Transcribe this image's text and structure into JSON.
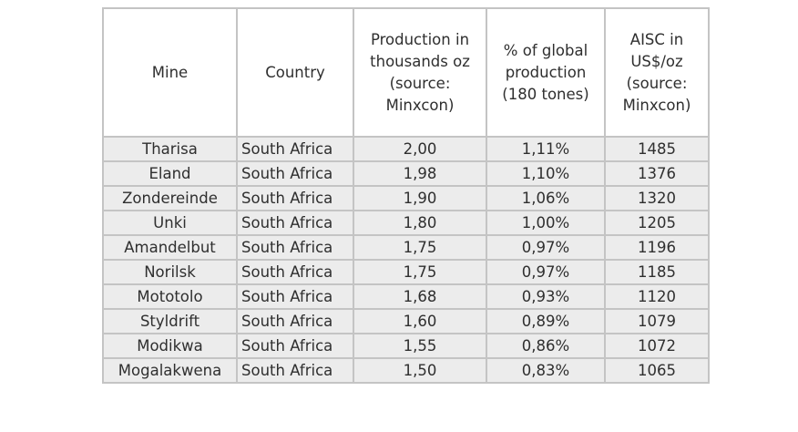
{
  "table": {
    "headers": [
      "Mine",
      "Country",
      "Production in thousands oz (source: Minxcon)",
      "% of global production (180 tones)",
      "AISC in US$/oz (source: Minxcon)"
    ],
    "header_lines": [
      [
        "Mine"
      ],
      [
        "Country"
      ],
      [
        "Production in",
        "thousands oz",
        "(source:",
        "Minxcon)"
      ],
      [
        "% of global",
        "production",
        "(180 tones)"
      ],
      [
        "AISC in",
        "US$/oz",
        "(source:",
        "Minxcon)"
      ]
    ],
    "rows": [
      [
        "Tharisa",
        "South Africa",
        "2,00",
        "1,11%",
        "1485"
      ],
      [
        "Eland",
        "South Africa",
        "1,98",
        "1,10%",
        "1376"
      ],
      [
        "Zondereinde",
        "South Africa",
        "1,90",
        "1,06%",
        "1320"
      ],
      [
        "Unki",
        "South Africa",
        "1,80",
        "1,00%",
        "1205"
      ],
      [
        "Amandelbut",
        "South Africa",
        "1,75",
        "0,97%",
        "1196"
      ],
      [
        "Norilsk",
        "South Africa",
        "1,75",
        "0,97%",
        "1185"
      ],
      [
        "Mototolo",
        "South Africa",
        "1,68",
        "0,93%",
        "1120"
      ],
      [
        "Styldrift",
        "South Africa",
        "1,60",
        "0,89%",
        "1079"
      ],
      [
        "Modikwa",
        "South Africa",
        "1,55",
        "0,86%",
        "1072"
      ],
      [
        "Mogalakwena",
        "South Africa",
        "1,50",
        "0,83%",
        "1065"
      ]
    ]
  }
}
